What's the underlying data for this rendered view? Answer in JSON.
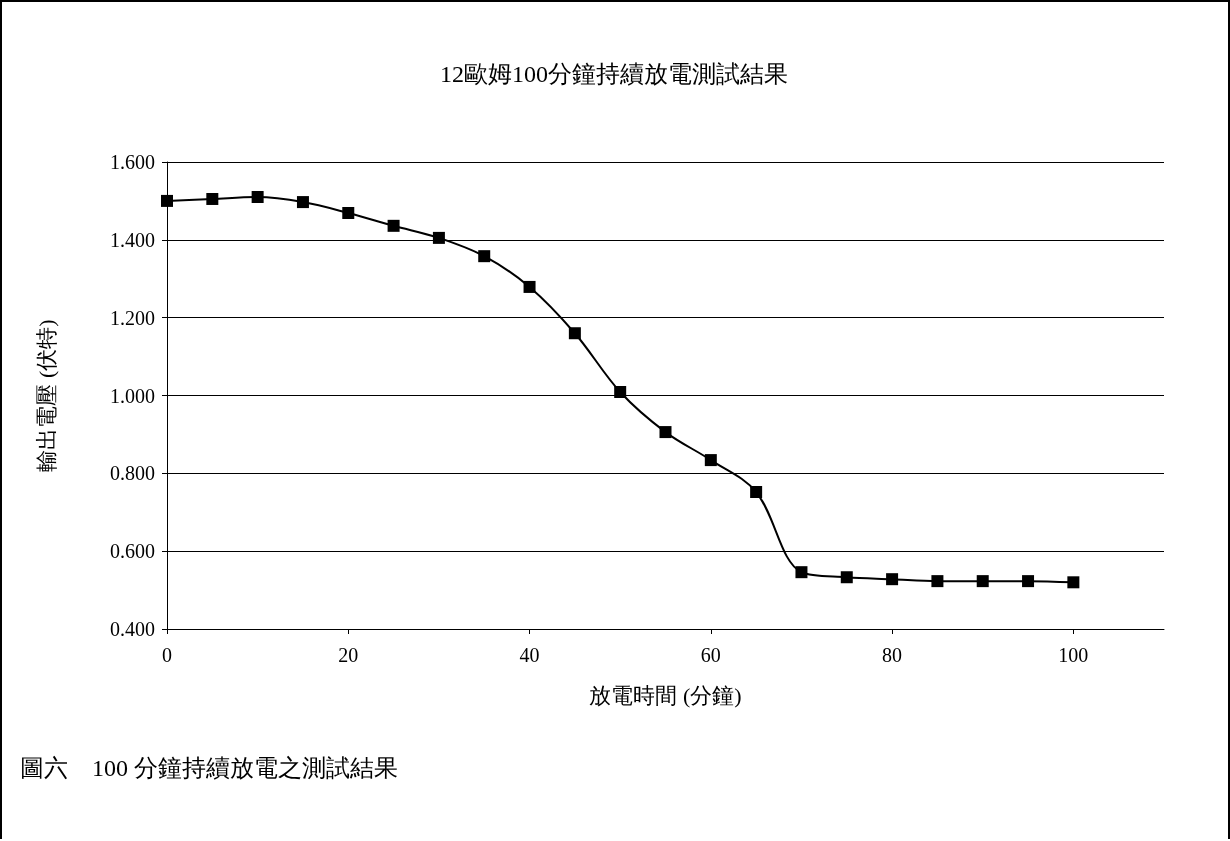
{
  "chart_data": {
    "type": "line",
    "title": "12歐姆100分鐘持續放電測試結果",
    "xlabel": "放電時間 (分鐘)",
    "ylabel": "輸出電壓 (伏特)",
    "annotations": [
      "圖六　100 分鐘持續放電之測試結果"
    ],
    "x": [
      0,
      5,
      10,
      15,
      20,
      25,
      30,
      35,
      40,
      45,
      50,
      55,
      60,
      65,
      70,
      75,
      80,
      85,
      90,
      95,
      100
    ],
    "series": [
      {
        "color": "#000000",
        "values": [
          1.5,
          1.505,
          1.51,
          1.497,
          1.469,
          1.436,
          1.405,
          1.358,
          1.279,
          1.16,
          1.009,
          0.906,
          0.834,
          0.752,
          0.546,
          0.533,
          0.528,
          0.523,
          0.523,
          0.523,
          0.52
        ]
      }
    ],
    "xlim": [
      0,
      110
    ],
    "xticks": [
      0,
      20,
      40,
      60,
      80,
      100
    ],
    "ylim": [
      0.4,
      1.6
    ],
    "yticks": [
      {
        "value": 0.4,
        "label": "0.400"
      },
      {
        "value": 0.6,
        "label": "0.600"
      },
      {
        "value": 0.8,
        "label": "0.800"
      },
      {
        "value": 1.0,
        "label": "1.000"
      },
      {
        "value": 1.2,
        "label": "1.200"
      },
      {
        "value": 1.4,
        "label": "1.400"
      },
      {
        "value": 1.6,
        "label": "1.600"
      }
    ],
    "grid": "y",
    "marker": "square",
    "line_style": "solid"
  }
}
